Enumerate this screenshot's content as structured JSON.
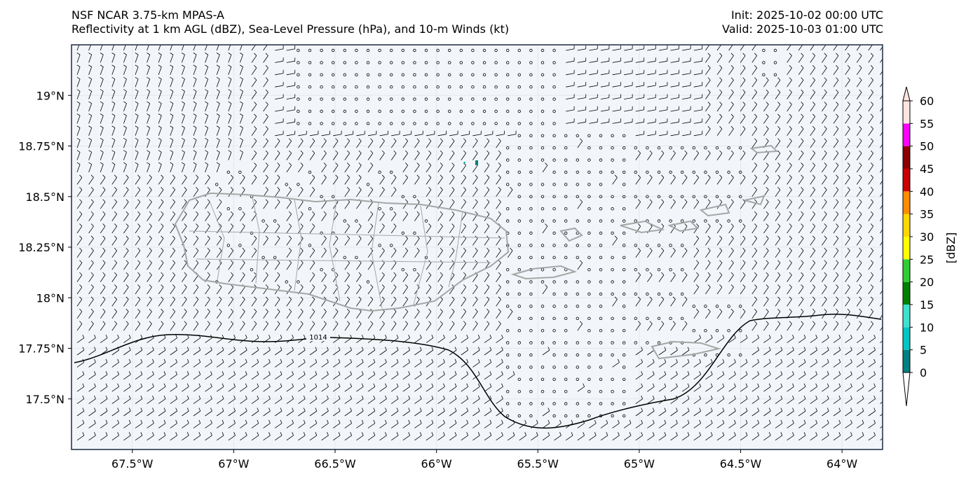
{
  "header": {
    "model": "NSF NCAR 3.75-km MPAS-A",
    "fields": "Reflectivity at 1 km AGL (dBZ), Sea-Level Pressure (hPa), and 10-m Winds (kt)",
    "init": "Init: 2025-10-02 00:00 UTC",
    "valid": "Valid: 2025-10-03 01:00 UTC"
  },
  "map": {
    "lon_range": [
      -67.8,
      -63.8
    ],
    "lat_range": [
      17.25,
      19.25
    ],
    "lat_labels": [
      "19°N",
      "18.75°N",
      "18.5°N",
      "18.25°N",
      "18°N",
      "17.75°N",
      "17.5°N"
    ],
    "lat_values": [
      19.0,
      18.75,
      18.5,
      18.25,
      18.0,
      17.75,
      17.5
    ],
    "lon_labels": [
      "67.5°W",
      "67°W",
      "66.5°W",
      "66°W",
      "65.5°W",
      "65°W",
      "64.5°W",
      "64°W"
    ],
    "lon_values": [
      -67.5,
      -67.0,
      -66.5,
      -66.0,
      -65.5,
      -65.0,
      -64.5,
      -64.0
    ],
    "isobar_label": "1014",
    "colors": {
      "background": "#f2f6fa",
      "coast": "#a6a6a6",
      "isobar": "#000000",
      "frame": "#1f2a44"
    }
  },
  "colorbar": {
    "label": "[dBZ]",
    "ticks": [
      "0",
      "5",
      "10",
      "15",
      "20",
      "25",
      "30",
      "35",
      "40",
      "45",
      "50",
      "55",
      "60"
    ],
    "colors": [
      "#ffffff",
      "#008080",
      "#00c5c5",
      "#40e0d0",
      "#008000",
      "#32cd32",
      "#ffff00",
      "#ffd700",
      "#ff8c00",
      "#cc0000",
      "#8b0000",
      "#ff00ff",
      "#ffe4e1"
    ]
  }
}
